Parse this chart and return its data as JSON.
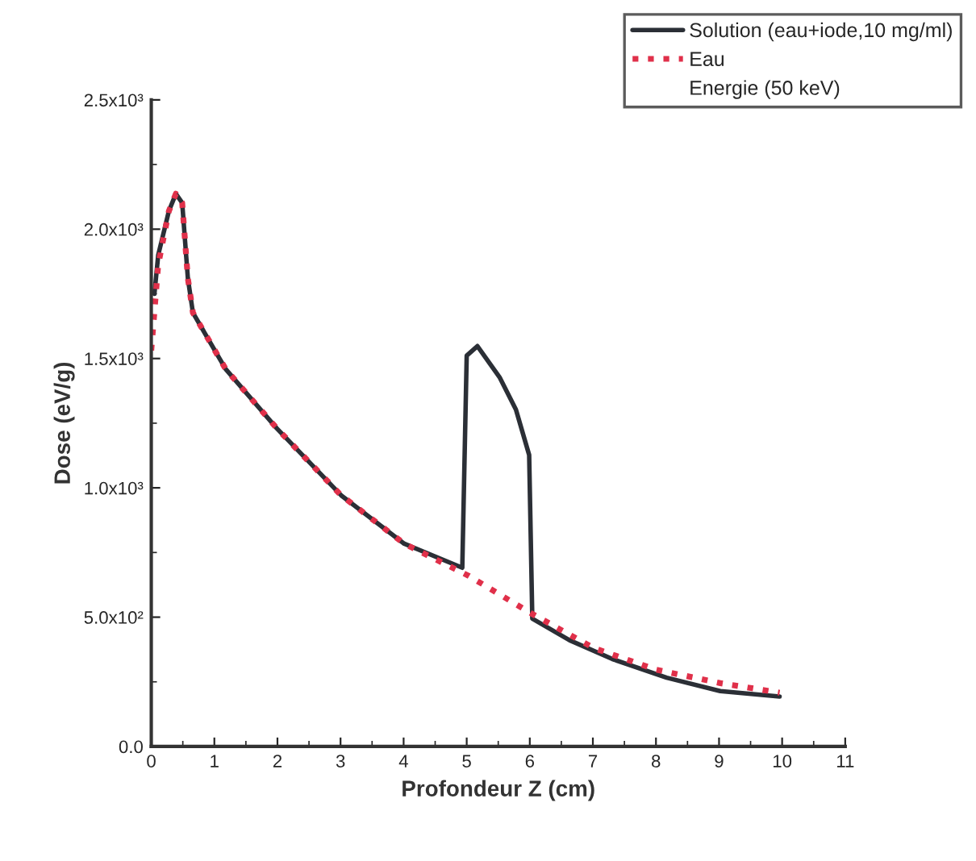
{
  "chart_data": {
    "type": "line",
    "xlabel": "Profondeur Z (cm)",
    "ylabel": "Dose (eV/g)",
    "series": [
      {
        "name": "Solution (eau+iode,10 mg/ml)",
        "color": "#2b2f36",
        "line_style": "solid",
        "x": [
          0.05,
          0.11,
          0.28,
          0.39,
          0.49,
          0.58,
          0.66,
          1.18,
          1.99,
          3.01,
          4.01,
          4.93,
          5.0,
          5.17,
          5.52,
          5.78,
          5.99,
          6.04,
          6.63,
          7.31,
          8.17,
          9.02,
          9.96
        ],
        "values": [
          1750,
          1900,
          2071,
          2137,
          2102,
          1810,
          1677,
          1459,
          1230,
          971,
          784,
          691,
          1511,
          1548,
          1428,
          1303,
          1127,
          494,
          411,
          338,
          266,
          214,
          193
        ]
      },
      {
        "name": "Eau",
        "color": "#e0304a",
        "line_style": "dotted",
        "x": [
          0.0,
          0.11,
          0.28,
          0.39,
          0.49,
          0.58,
          0.66,
          1.18,
          1.99,
          3.01,
          4.01,
          5.03,
          6.02,
          7.02,
          8.0,
          9.02,
          9.96
        ],
        "values": [
          1531,
          1863,
          2071,
          2137,
          2102,
          1810,
          1677,
          1459,
          1230,
          971,
          784,
          660,
          515,
          380,
          297,
          245,
          208
        ]
      }
    ],
    "annotations": [
      "Energie (50 keV)"
    ],
    "xlim": [
      0,
      11
    ],
    "xticks": [
      0,
      1,
      2,
      3,
      4,
      5,
      6,
      7,
      8,
      9,
      10,
      11
    ],
    "ylim": [
      0,
      2500
    ],
    "yticks": [
      {
        "value": 0,
        "label": "0.0"
      },
      {
        "value": 500,
        "label": "5.0x10²"
      },
      {
        "value": 1000,
        "label": "1.0x10³"
      },
      {
        "value": 1500,
        "label": "1.5x10³"
      },
      {
        "value": 2000,
        "label": "2.0x10³"
      },
      {
        "value": 2500,
        "label": "2.5x10³"
      }
    ],
    "legend": "top right",
    "grid": false
  }
}
